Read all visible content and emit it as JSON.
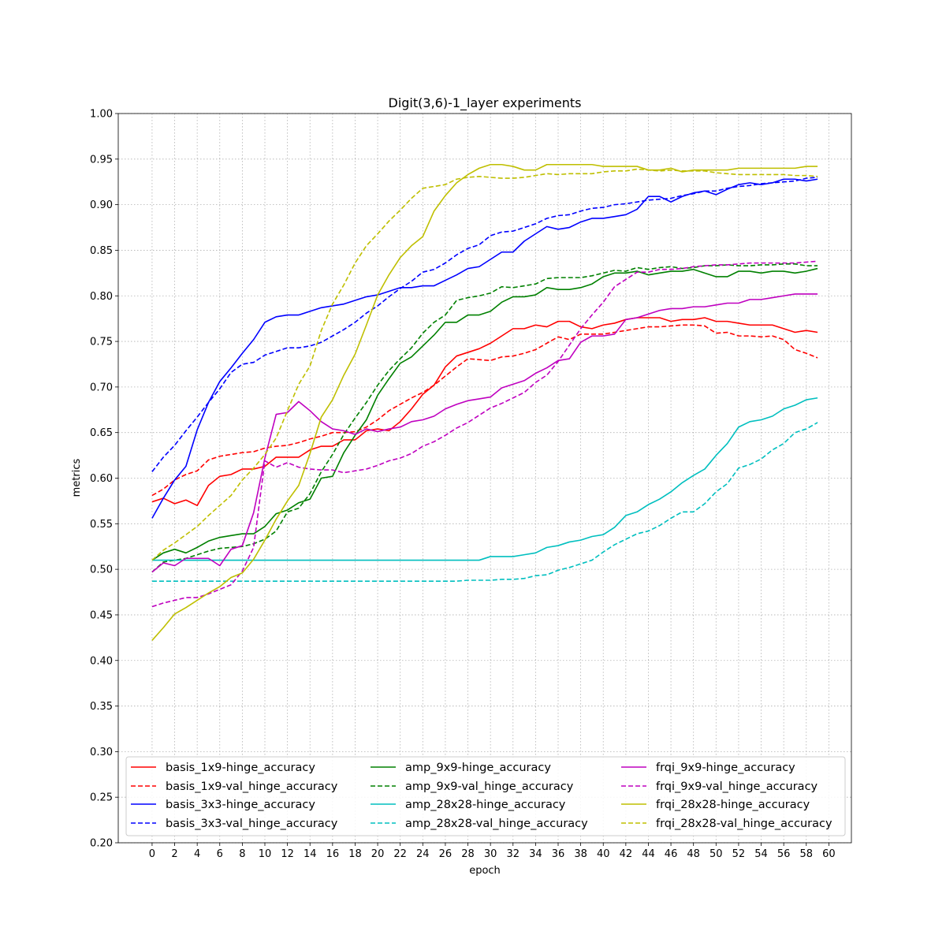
{
  "chart_data": {
    "type": "line",
    "title": "Digit(3,6)-1_layer experiments",
    "xlabel": "epoch",
    "ylabel": "metrics",
    "xlim": [
      -3,
      62
    ],
    "ylim": [
      0.2,
      1.0
    ],
    "xticks": [
      0,
      2,
      4,
      6,
      8,
      10,
      12,
      14,
      16,
      18,
      20,
      22,
      24,
      26,
      28,
      30,
      32,
      34,
      36,
      38,
      40,
      42,
      44,
      46,
      48,
      50,
      52,
      54,
      56,
      58,
      60
    ],
    "yticks": [
      "0.20",
      "0.25",
      "0.30",
      "0.35",
      "0.40",
      "0.45",
      "0.50",
      "0.55",
      "0.60",
      "0.65",
      "0.70",
      "0.75",
      "0.80",
      "0.85",
      "0.90",
      "0.95",
      "1.00"
    ],
    "grid": true,
    "legend_position": "lower-center",
    "legend_columns": 3,
    "x": [
      0,
      1,
      2,
      3,
      4,
      5,
      6,
      7,
      8,
      9,
      10,
      11,
      12,
      13,
      14,
      15,
      16,
      17,
      18,
      19,
      20,
      21,
      22,
      23,
      24,
      25,
      26,
      27,
      28,
      29,
      30,
      31,
      32,
      33,
      34,
      35,
      36,
      37,
      38,
      39,
      40,
      41,
      42,
      43,
      44,
      45,
      46,
      47,
      48,
      49,
      50,
      51,
      52,
      53,
      54,
      55,
      56,
      57,
      58,
      59
    ],
    "series": [
      {
        "name": "basis_1x9-hinge_accuracy",
        "color": "#ff0000",
        "dash": "solid",
        "values": [
          0.574,
          0.578,
          0.572,
          0.576,
          0.57,
          0.592,
          0.602,
          0.604,
          0.61,
          0.61,
          0.613,
          0.623,
          0.623,
          0.623,
          0.631,
          0.635,
          0.635,
          0.642,
          0.642,
          0.652,
          0.654,
          0.652,
          0.662,
          0.676,
          0.692,
          0.702,
          0.722,
          0.734,
          0.738,
          0.742,
          0.748,
          0.756,
          0.764,
          0.764,
          0.768,
          0.766,
          0.772,
          0.772,
          0.766,
          0.764,
          0.768,
          0.77,
          0.774,
          0.776,
          0.776,
          0.776,
          0.772,
          0.774,
          0.774,
          0.776,
          0.772,
          0.772,
          0.77,
          0.768,
          0.768,
          0.768,
          0.764,
          0.76,
          0.762,
          0.76
        ]
      },
      {
        "name": "basis_1x9-val_hinge_accuracy",
        "color": "#ff0000",
        "dash": "dashed",
        "values": [
          0.581,
          0.588,
          0.598,
          0.604,
          0.608,
          0.62,
          0.624,
          0.626,
          0.628,
          0.629,
          0.633,
          0.635,
          0.636,
          0.639,
          0.643,
          0.646,
          0.65,
          0.65,
          0.651,
          0.656,
          0.664,
          0.674,
          0.681,
          0.688,
          0.694,
          0.702,
          0.712,
          0.722,
          0.731,
          0.73,
          0.729,
          0.733,
          0.734,
          0.737,
          0.741,
          0.748,
          0.755,
          0.752,
          0.758,
          0.758,
          0.758,
          0.76,
          0.762,
          0.764,
          0.766,
          0.766,
          0.767,
          0.768,
          0.768,
          0.767,
          0.759,
          0.76,
          0.756,
          0.756,
          0.755,
          0.756,
          0.752,
          0.741,
          0.737,
          0.732
        ]
      },
      {
        "name": "basis_3x3-hinge_accuracy",
        "color": "#0000ff",
        "dash": "solid",
        "values": [
          0.556,
          0.578,
          0.598,
          0.613,
          0.653,
          0.683,
          0.706,
          0.721,
          0.737,
          0.752,
          0.771,
          0.777,
          0.779,
          0.779,
          0.783,
          0.787,
          0.789,
          0.791,
          0.795,
          0.799,
          0.801,
          0.805,
          0.809,
          0.809,
          0.811,
          0.811,
          0.817,
          0.823,
          0.83,
          0.832,
          0.84,
          0.848,
          0.848,
          0.86,
          0.868,
          0.876,
          0.873,
          0.875,
          0.881,
          0.885,
          0.885,
          0.887,
          0.889,
          0.895,
          0.909,
          0.909,
          0.903,
          0.909,
          0.913,
          0.915,
          0.911,
          0.917,
          0.922,
          0.924,
          0.922,
          0.924,
          0.928,
          0.928,
          0.926,
          0.928
        ]
      },
      {
        "name": "basis_3x3-val_hinge_accuracy",
        "color": "#0000ff",
        "dash": "dashed",
        "values": [
          0.607,
          0.623,
          0.636,
          0.652,
          0.667,
          0.683,
          0.698,
          0.716,
          0.725,
          0.727,
          0.735,
          0.739,
          0.743,
          0.743,
          0.745,
          0.749,
          0.756,
          0.763,
          0.771,
          0.781,
          0.789,
          0.799,
          0.808,
          0.816,
          0.826,
          0.829,
          0.836,
          0.845,
          0.852,
          0.856,
          0.866,
          0.87,
          0.871,
          0.875,
          0.879,
          0.885,
          0.888,
          0.889,
          0.893,
          0.896,
          0.897,
          0.9,
          0.901,
          0.903,
          0.905,
          0.906,
          0.907,
          0.91,
          0.912,
          0.915,
          0.915,
          0.918,
          0.92,
          0.921,
          0.923,
          0.924,
          0.925,
          0.926,
          0.929,
          0.93
        ]
      },
      {
        "name": "amp_9x9-hinge_accuracy",
        "color": "#008000",
        "dash": "solid",
        "values": [
          0.51,
          0.518,
          0.522,
          0.518,
          0.524,
          0.531,
          0.535,
          0.537,
          0.539,
          0.539,
          0.547,
          0.561,
          0.565,
          0.573,
          0.577,
          0.6,
          0.602,
          0.628,
          0.647,
          0.664,
          0.691,
          0.709,
          0.726,
          0.733,
          0.745,
          0.757,
          0.771,
          0.771,
          0.779,
          0.779,
          0.783,
          0.793,
          0.799,
          0.799,
          0.801,
          0.809,
          0.807,
          0.807,
          0.809,
          0.813,
          0.821,
          0.825,
          0.825,
          0.827,
          0.823,
          0.825,
          0.827,
          0.827,
          0.829,
          0.825,
          0.821,
          0.821,
          0.827,
          0.827,
          0.825,
          0.827,
          0.827,
          0.825,
          0.827,
          0.83
        ]
      },
      {
        "name": "amp_9x9-val_hinge_accuracy",
        "color": "#008000",
        "dash": "dashed",
        "values": [
          0.497,
          0.508,
          0.51,
          0.512,
          0.516,
          0.52,
          0.523,
          0.524,
          0.525,
          0.528,
          0.533,
          0.542,
          0.563,
          0.567,
          0.583,
          0.607,
          0.626,
          0.648,
          0.666,
          0.683,
          0.702,
          0.718,
          0.731,
          0.743,
          0.759,
          0.771,
          0.779,
          0.795,
          0.798,
          0.8,
          0.803,
          0.81,
          0.809,
          0.811,
          0.813,
          0.819,
          0.82,
          0.82,
          0.82,
          0.822,
          0.825,
          0.828,
          0.827,
          0.831,
          0.829,
          0.831,
          0.832,
          0.83,
          0.831,
          0.833,
          0.833,
          0.834,
          0.833,
          0.833,
          0.834,
          0.834,
          0.835,
          0.835,
          0.833,
          0.833
        ]
      },
      {
        "name": "amp_28x28-hinge_accuracy",
        "color": "#00bfbf",
        "dash": "solid",
        "values": [
          0.51,
          0.51,
          0.51,
          0.51,
          0.51,
          0.51,
          0.51,
          0.51,
          0.51,
          0.51,
          0.51,
          0.51,
          0.51,
          0.51,
          0.51,
          0.51,
          0.51,
          0.51,
          0.51,
          0.51,
          0.51,
          0.51,
          0.51,
          0.51,
          0.51,
          0.51,
          0.51,
          0.51,
          0.51,
          0.51,
          0.514,
          0.514,
          0.514,
          0.516,
          0.518,
          0.524,
          0.526,
          0.53,
          0.532,
          0.536,
          0.538,
          0.546,
          0.559,
          0.563,
          0.571,
          0.577,
          0.585,
          0.595,
          0.603,
          0.61,
          0.625,
          0.638,
          0.656,
          0.662,
          0.664,
          0.668,
          0.676,
          0.68,
          0.686,
          0.688
        ]
      },
      {
        "name": "amp_28x28-val_hinge_accuracy",
        "color": "#00bfbf",
        "dash": "dashed",
        "values": [
          0.487,
          0.487,
          0.487,
          0.487,
          0.487,
          0.487,
          0.487,
          0.487,
          0.487,
          0.487,
          0.487,
          0.487,
          0.487,
          0.487,
          0.487,
          0.487,
          0.487,
          0.487,
          0.487,
          0.487,
          0.487,
          0.487,
          0.487,
          0.487,
          0.487,
          0.487,
          0.487,
          0.487,
          0.488,
          0.488,
          0.488,
          0.489,
          0.489,
          0.49,
          0.493,
          0.494,
          0.499,
          0.502,
          0.506,
          0.51,
          0.519,
          0.527,
          0.533,
          0.539,
          0.542,
          0.548,
          0.556,
          0.563,
          0.563,
          0.572,
          0.585,
          0.594,
          0.611,
          0.615,
          0.621,
          0.631,
          0.638,
          0.65,
          0.654,
          0.661
        ]
      },
      {
        "name": "frqi_9x9-hinge_accuracy",
        "color": "#bf00bf",
        "dash": "solid",
        "values": [
          0.497,
          0.507,
          0.504,
          0.512,
          0.512,
          0.512,
          0.504,
          0.522,
          0.526,
          0.562,
          0.622,
          0.67,
          0.672,
          0.684,
          0.674,
          0.662,
          0.654,
          0.652,
          0.648,
          0.654,
          0.651,
          0.654,
          0.656,
          0.662,
          0.664,
          0.668,
          0.676,
          0.681,
          0.685,
          0.687,
          0.689,
          0.699,
          0.703,
          0.707,
          0.715,
          0.721,
          0.729,
          0.731,
          0.749,
          0.756,
          0.756,
          0.758,
          0.774,
          0.776,
          0.78,
          0.784,
          0.786,
          0.786,
          0.788,
          0.788,
          0.79,
          0.792,
          0.792,
          0.796,
          0.796,
          0.798,
          0.8,
          0.802,
          0.802,
          0.802
        ]
      },
      {
        "name": "frqi_9x9-val_hinge_accuracy",
        "color": "#bf00bf",
        "dash": "dashed",
        "values": [
          0.459,
          0.463,
          0.466,
          0.469,
          0.469,
          0.473,
          0.478,
          0.483,
          0.498,
          0.524,
          0.619,
          0.612,
          0.617,
          0.612,
          0.61,
          0.609,
          0.609,
          0.606,
          0.608,
          0.61,
          0.614,
          0.619,
          0.622,
          0.627,
          0.635,
          0.64,
          0.647,
          0.655,
          0.661,
          0.669,
          0.677,
          0.682,
          0.688,
          0.694,
          0.705,
          0.713,
          0.728,
          0.746,
          0.764,
          0.779,
          0.793,
          0.81,
          0.818,
          0.826,
          0.826,
          0.829,
          0.829,
          0.83,
          0.832,
          0.833,
          0.834,
          0.834,
          0.835,
          0.836,
          0.836,
          0.836,
          0.836,
          0.836,
          0.837,
          0.838
        ]
      },
      {
        "name": "frqi_28x28-hinge_accuracy",
        "color": "#bfbf00",
        "dash": "solid",
        "values": [
          0.422,
          0.436,
          0.451,
          0.458,
          0.466,
          0.474,
          0.481,
          0.491,
          0.496,
          0.511,
          0.532,
          0.555,
          0.575,
          0.592,
          0.627,
          0.667,
          0.686,
          0.713,
          0.736,
          0.768,
          0.801,
          0.823,
          0.842,
          0.855,
          0.865,
          0.893,
          0.91,
          0.924,
          0.933,
          0.94,
          0.944,
          0.944,
          0.942,
          0.938,
          0.938,
          0.944,
          0.944,
          0.944,
          0.944,
          0.944,
          0.942,
          0.942,
          0.942,
          0.942,
          0.938,
          0.938,
          0.94,
          0.936,
          0.938,
          0.938,
          0.938,
          0.938,
          0.94,
          0.94,
          0.94,
          0.94,
          0.94,
          0.94,
          0.942,
          0.942
        ]
      },
      {
        "name": "frqi_28x28-val_hinge_accuracy",
        "color": "#bfbf00",
        "dash": "dashed",
        "values": [
          0.51,
          0.521,
          0.529,
          0.538,
          0.547,
          0.559,
          0.57,
          0.581,
          0.598,
          0.611,
          0.626,
          0.644,
          0.674,
          0.703,
          0.723,
          0.762,
          0.791,
          0.812,
          0.836,
          0.855,
          0.868,
          0.882,
          0.894,
          0.907,
          0.918,
          0.92,
          0.922,
          0.928,
          0.93,
          0.931,
          0.93,
          0.929,
          0.929,
          0.93,
          0.932,
          0.934,
          0.933,
          0.934,
          0.934,
          0.934,
          0.936,
          0.937,
          0.937,
          0.939,
          0.938,
          0.937,
          0.938,
          0.937,
          0.937,
          0.937,
          0.935,
          0.934,
          0.933,
          0.933,
          0.933,
          0.933,
          0.933,
          0.932,
          0.932,
          0.931
        ]
      }
    ]
  }
}
